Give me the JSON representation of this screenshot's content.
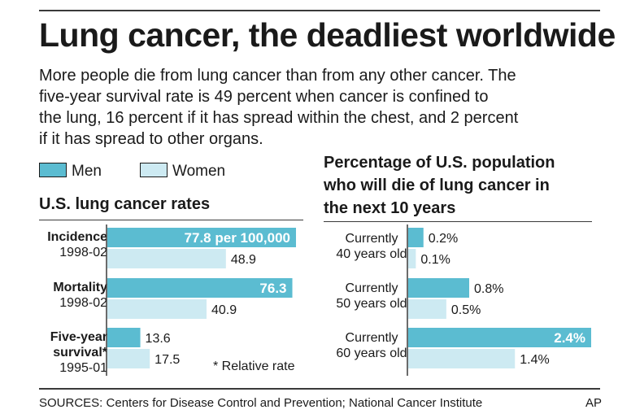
{
  "title": "Lung cancer, the deadliest worldwide",
  "intro_lines": [
    "More people die from lung cancer than from any other cancer. The",
    "five-year survival rate is 49 percent when cancer is confined to",
    "the lung, 16 percent if it has spread within the chest, and 2 percent",
    "if it has spread to other organs."
  ],
  "legend": {
    "men": "Men",
    "women": "Women",
    "men_color": "#5bbcd1",
    "women_color": "#cdeaf2"
  },
  "chart_data": [
    {
      "type": "bar",
      "title": "U.S. lung cancer rates",
      "orientation": "horizontal",
      "categories": [
        {
          "label": "Incidence",
          "sublabel": "1998-02"
        },
        {
          "label": "Mortality",
          "sublabel": "1998-02"
        },
        {
          "label": "Five-year survival*",
          "sublabel": "1995-01"
        }
      ],
      "series": [
        {
          "name": "Men",
          "values": [
            77.8,
            76.3,
            13.6
          ],
          "labels": [
            "77.8 per 100,000",
            "76.3",
            "13.6"
          ]
        },
        {
          "name": "Women",
          "values": [
            48.9,
            40.9,
            17.5
          ],
          "labels": [
            "48.9",
            "40.9",
            "17.5"
          ]
        }
      ],
      "footnote": "* Relative rate",
      "xlim": [
        0,
        77.8
      ]
    },
    {
      "type": "bar",
      "title": "Percentage of U.S. population who will die of lung cancer in the next 10 years",
      "title_lines": [
        "Percentage of U.S. population",
        "who will die of lung cancer in",
        "the next 10 years"
      ],
      "orientation": "horizontal",
      "categories": [
        {
          "line1": "Currently",
          "line2": "40 years old"
        },
        {
          "line1": "Currently",
          "line2": "50 years old"
        },
        {
          "line1": "Currently",
          "line2": "60 years old"
        }
      ],
      "series": [
        {
          "name": "Men",
          "values": [
            0.2,
            0.8,
            2.4
          ],
          "labels": [
            "0.2%",
            "0.8%",
            "2.4%"
          ]
        },
        {
          "name": "Women",
          "values": [
            0.1,
            0.5,
            1.4
          ],
          "labels": [
            "0.1%",
            "0.5%",
            "1.4%"
          ]
        }
      ],
      "xlim": [
        0,
        2.4
      ]
    }
  ],
  "sources": "SOURCES: Centers for Disease Control and Prevention; National Cancer Institute",
  "credit": "AP"
}
